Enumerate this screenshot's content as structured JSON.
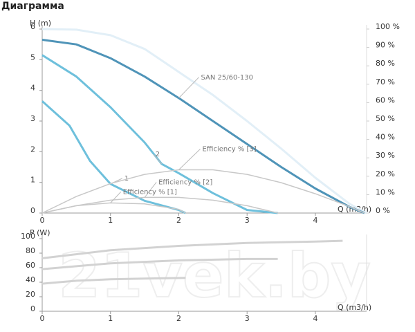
{
  "title": "Диаграмма",
  "watermark": "21vek.by",
  "chart_data": [
    {
      "type": "line",
      "y_label": "H (m)",
      "x_label": "Q (m3/h)",
      "xlim": [
        0,
        4.75
      ],
      "xticks": [
        0,
        1,
        2,
        3,
        4
      ],
      "ylim": [
        0,
        6
      ],
      "yticks": [
        0,
        1,
        2,
        3,
        4,
        5,
        6
      ],
      "y2lim": [
        0,
        100
      ],
      "y2ticks": [
        {
          "value": 0,
          "label": "0 %"
        },
        {
          "value": 10,
          "label": "10 %"
        },
        {
          "value": 20,
          "label": "20 %"
        },
        {
          "value": 30,
          "label": "30 %"
        },
        {
          "value": 40,
          "label": "40 %"
        },
        {
          "value": 50,
          "label": "50 %"
        },
        {
          "value": 60,
          "label": "60 %"
        },
        {
          "value": 70,
          "label": "70 %"
        },
        {
          "value": 80,
          "label": "80 %"
        },
        {
          "value": 90,
          "label": "90 %"
        },
        {
          "value": 100,
          "label": "100 %"
        }
      ],
      "series": [
        {
          "color": "#e2eff7",
          "x": [
            0,
            0.5,
            1,
            1.5,
            2,
            2.5,
            3,
            3.5,
            4,
            4.5,
            4.75
          ],
          "values": [
            6,
            5.98,
            5.8,
            5.35,
            4.6,
            3.85,
            3.0,
            2.1,
            1.15,
            0.3,
            0
          ]
        },
        {
          "name": "SAN 25/60-130",
          "color": "#4f94b8",
          "x": [
            0,
            0.5,
            1,
            1.5,
            2,
            2.5,
            3,
            3.5,
            4,
            4.5,
            4.72
          ],
          "values": [
            5.65,
            5.5,
            5.05,
            4.45,
            3.75,
            3.0,
            2.25,
            1.5,
            0.8,
            0.2,
            0
          ]
        },
        {
          "name": "2",
          "color": "#6ec0dc",
          "x": [
            0,
            0.5,
            1,
            1.5,
            1.75,
            2,
            2.5,
            3,
            3.45
          ],
          "values": [
            5.15,
            4.45,
            3.45,
            2.3,
            1.6,
            1.3,
            0.65,
            0.1,
            0
          ]
        },
        {
          "name": "1",
          "color": "#6ec0dc",
          "x": [
            0,
            0.4,
            0.7,
            1,
            1.5,
            2,
            2.1
          ],
          "values": [
            3.65,
            2.85,
            1.7,
            0.95,
            0.4,
            0.1,
            0
          ]
        },
        {
          "name": "Efficiency % [3]",
          "color": "#c8c8c8",
          "axis": "y2",
          "x": [
            0,
            0.5,
            1,
            1.5,
            2,
            2.5,
            3,
            3.5,
            4,
            4.5,
            4.72
          ],
          "values": [
            0,
            9,
            16,
            21,
            23.5,
            23.5,
            21,
            16.5,
            10.5,
            3.5,
            0
          ]
        },
        {
          "name": "Efficiency % [2]",
          "color": "#c8c8c8",
          "axis": "y2",
          "x": [
            0,
            0.5,
            1,
            1.5,
            2,
            2.5,
            3,
            3.45
          ],
          "values": [
            0,
            4,
            7,
            8.5,
            8.5,
            7,
            4,
            0
          ]
        },
        {
          "name": "Efficiency % [1]",
          "color": "#c8c8c8",
          "axis": "y2",
          "x": [
            0,
            0.5,
            1,
            1.5,
            2,
            2.1
          ],
          "values": [
            0,
            4,
            5.5,
            5,
            2,
            0
          ]
        }
      ]
    },
    {
      "type": "line",
      "y_label": "P (W)",
      "x_label": "Q (m3/h)",
      "xlim": [
        0,
        4.75
      ],
      "xticks": [
        0,
        1,
        2,
        3,
        4
      ],
      "ylim": [
        0,
        100
      ],
      "yticks": [
        0,
        20,
        40,
        60,
        80,
        100
      ],
      "series": [
        {
          "color": "#d2d2d2",
          "x": [
            0,
            1,
            2,
            3,
            4,
            4.4
          ],
          "values": [
            73,
            84,
            90,
            94,
            96,
            97
          ]
        },
        {
          "color": "#d2d2d2",
          "x": [
            0,
            1,
            2,
            3,
            3.45
          ],
          "values": [
            58,
            66,
            70,
            72,
            72
          ]
        },
        {
          "color": "#d2d2d2",
          "x": [
            0,
            0.5,
            1,
            1.5,
            2.1
          ],
          "values": [
            38,
            42,
            44,
            45,
            46
          ]
        }
      ]
    }
  ]
}
